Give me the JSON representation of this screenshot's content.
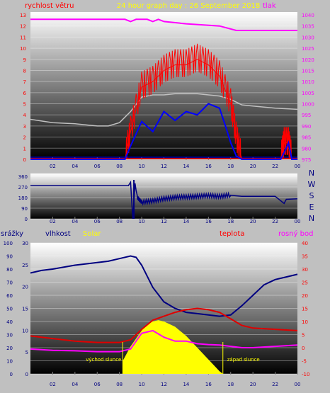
{
  "colors": {
    "background": "#c0c0c0",
    "wind": "#ff0000",
    "gust": "#0000ff",
    "pressure": "#ff00ff",
    "wind_avg_pressure_line": "#c0c0c0",
    "humidity": "#000080",
    "solar": "#ffff00",
    "temperature": "#e00000",
    "dewpoint": "#ff00ff",
    "rain": "#000000"
  },
  "chart_data": [
    {
      "type": "line",
      "title": "24 hour graph day : 26 September 2018",
      "left_label": "rychlost větru",
      "right_label": "tlak",
      "x_ticks": [
        "02",
        "04",
        "06",
        "08",
        "10",
        "12",
        "14",
        "16",
        "18",
        "20",
        "22",
        "00"
      ],
      "left_ticks": [
        "0",
        "1",
        "2",
        "3",
        "4",
        "5",
        "6",
        "7",
        "8",
        "9",
        "10",
        "11",
        "12",
        "13"
      ],
      "right_ticks": [
        "975",
        "980",
        "985",
        "990",
        "995",
        "1000",
        "1005",
        "1010",
        "1015",
        "1020",
        "1025",
        "1030",
        "1035",
        "1040"
      ],
      "ylim_left": [
        0,
        13
      ],
      "ylim_right": [
        975,
        1040
      ],
      "series": [
        {
          "name": "tlak",
          "axis": "right",
          "x": [
            0,
            8.5,
            9,
            9.5,
            10.5,
            11,
            11.5,
            12,
            14,
            17,
            18.5,
            19,
            24
          ],
          "y": [
            1038,
            1038,
            1037,
            1038,
            1038,
            1037,
            1038,
            1037,
            1036,
            1035,
            1033,
            1033,
            1033
          ]
        },
        {
          "axis": "left",
          "x": [
            0,
            2,
            4,
            6,
            7,
            8,
            9,
            10,
            11,
            12,
            13,
            14,
            15,
            16,
            17,
            18,
            19,
            20,
            22,
            24
          ],
          "y": [
            3.6,
            3.3,
            3.2,
            3.0,
            3.0,
            3.3,
            4.3,
            5.6,
            5.8,
            5.8,
            5.9,
            5.9,
            5.9,
            5.8,
            5.7,
            5.4,
            4.9,
            4.8,
            4.6,
            4.5
          ]
        },
        {
          "axis": "left",
          "x": [
            0,
            8.5,
            9,
            10,
            11,
            12,
            13,
            14,
            15,
            16,
            17,
            17.5,
            18,
            18.5,
            19,
            22.5,
            22.8,
            23.2,
            23.5,
            24
          ],
          "y": [
            0,
            0,
            1.2,
            3.4,
            2.5,
            4.3,
            3.5,
            4.3,
            4.0,
            5.0,
            4.6,
            3.1,
            1.5,
            0.3,
            0,
            0,
            0.6,
            1.5,
            0,
            0
          ]
        },
        {
          "axis": "left",
          "x": [
            0,
            8.5,
            9,
            10,
            11,
            12,
            13,
            14,
            15,
            16,
            17,
            18,
            18.5,
            19,
            22.5,
            22.8,
            23.2,
            23.5,
            24
          ],
          "y": [
            0,
            0,
            2.5,
            6.5,
            7.0,
            8.0,
            8.5,
            8.5,
            9.0,
            8.5,
            7.5,
            5.0,
            2.0,
            0,
            0,
            1.5,
            1.5,
            0,
            0
          ]
        }
      ]
    },
    {
      "type": "line",
      "left_ticks": [
        "0",
        "90",
        "180",
        "270",
        "360"
      ],
      "ylim": [
        0,
        360
      ],
      "direction_labels": [
        "N",
        "W",
        "S",
        "E",
        "N"
      ],
      "series": [
        {
          "axis": "left",
          "x": [
            0,
            8.8,
            9.0,
            9.2,
            9.4,
            9.6,
            10,
            11,
            12,
            13,
            14,
            15,
            16,
            17,
            18,
            19,
            20,
            21,
            22,
            22.8,
            23,
            24
          ],
          "y": [
            280,
            280,
            310,
            0,
            300,
            180,
            140,
            150,
            170,
            180,
            185,
            190,
            195,
            190,
            200,
            190,
            190,
            190,
            190,
            130,
            165,
            170
          ]
        }
      ]
    },
    {
      "type": "line",
      "labels": {
        "rain": "srážky",
        "humidity": "vlhkost",
        "solar": "Solar",
        "temperature": "teplota",
        "dewpoint": "rosný bod"
      },
      "annotations": {
        "sunrise": "východ slunce",
        "sunset": "západ slunce"
      },
      "x_ticks": [
        "02",
        "04",
        "06",
        "08",
        "10",
        "12",
        "14",
        "16",
        "18",
        "20",
        "22",
        "00"
      ],
      "rain_ticks": [
        "0",
        "10",
        "20",
        "30",
        "40",
        "50",
        "60",
        "70",
        "80",
        "90",
        "100"
      ],
      "humidity_ticks": [
        "0",
        "5",
        "10",
        "15",
        "20",
        "25",
        "30"
      ],
      "temp_ticks": [
        "-10",
        "-5",
        "0",
        "5",
        "10",
        "15",
        "20",
        "25",
        "30",
        "35",
        "40"
      ],
      "ylim_humidity": [
        0,
        100
      ],
      "ylim_temp": [
        -10,
        40
      ],
      "series": [
        {
          "name": "vlhkost",
          "axis": "rain",
          "x": [
            0,
            1,
            2,
            4,
            6,
            7,
            8,
            9,
            9.5,
            10,
            11,
            12,
            13,
            14,
            15,
            16,
            17,
            18,
            19,
            20,
            21,
            22,
            23,
            24
          ],
          "y": [
            77,
            79,
            80,
            83,
            85,
            86,
            88,
            90,
            89,
            83,
            66,
            55,
            50,
            47,
            46,
            45,
            44,
            45,
            52,
            60,
            68,
            72,
            74,
            76
          ]
        },
        {
          "name": "teplota",
          "axis": "temp",
          "x": [
            0,
            2,
            4,
            6,
            8,
            9,
            10,
            11,
            12,
            13,
            14,
            15,
            16,
            17,
            18,
            19,
            20,
            22,
            24
          ],
          "y": [
            4.5,
            3.5,
            2.5,
            2.0,
            2.0,
            3.0,
            7.0,
            10.5,
            12.0,
            13.5,
            14.5,
            15.0,
            14.5,
            13.5,
            11.0,
            8.5,
            7.5,
            7.0,
            6.5
          ]
        },
        {
          "name": "rosný bod",
          "axis": "temp",
          "x": [
            0,
            2,
            4,
            6,
            8,
            9,
            10,
            11,
            12,
            13,
            14,
            15,
            16,
            17,
            18,
            19,
            20,
            22,
            24
          ],
          "y": [
            -0.5,
            -1,
            -1.2,
            -1.5,
            -1.5,
            -0.5,
            5.5,
            6.5,
            4.0,
            2.5,
            2.5,
            1.5,
            1.2,
            1.0,
            0.5,
            0.0,
            0.0,
            0.5,
            1.0
          ]
        },
        {
          "name": "Solar",
          "axis": "rain",
          "x": [
            8.3,
            8.3,
            9,
            10,
            10.5,
            11,
            11.5,
            12,
            13,
            14,
            15,
            16,
            17,
            17.3
          ],
          "y": [
            0,
            10,
            21,
            33,
            38,
            40,
            41,
            40,
            36,
            29,
            20,
            11,
            2,
            0
          ]
        }
      ]
    }
  ]
}
